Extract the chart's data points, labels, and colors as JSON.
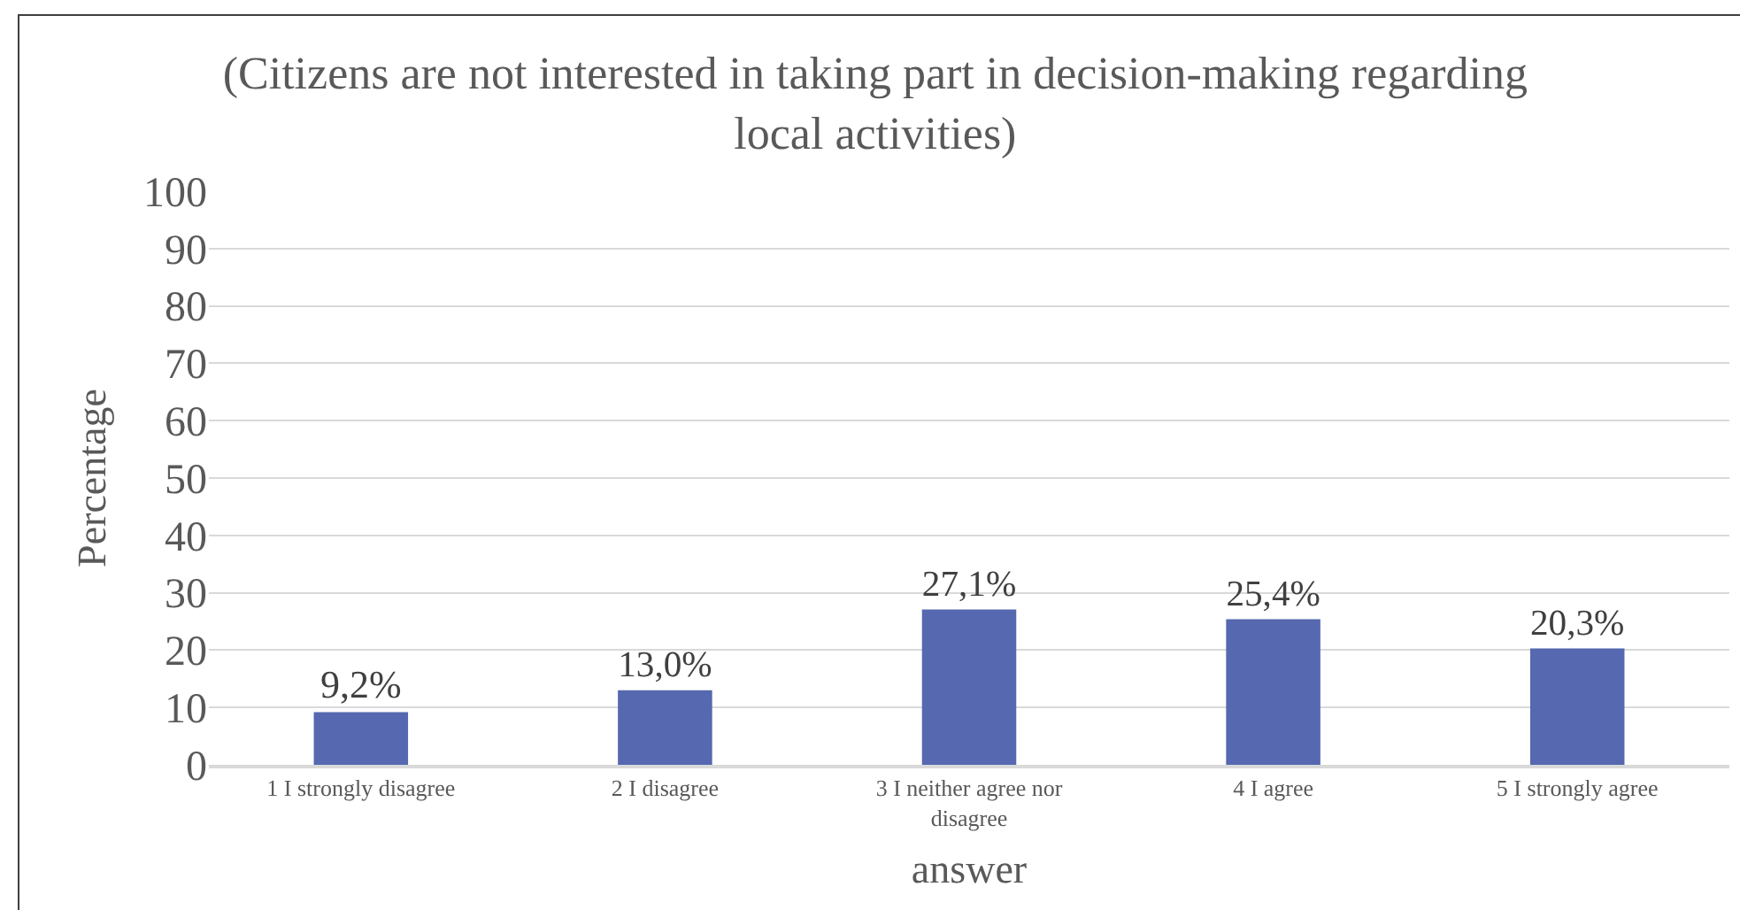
{
  "chart_data": {
    "type": "bar",
    "title": "(Citizens are not interested in taking part in decision-making regarding local activities)",
    "xlabel": "answer",
    "ylabel": "Percentage",
    "categories": [
      "1 I strongly disagree",
      "2 I disagree",
      "3 I neither agree nor disagree",
      "4 I agree",
      "5 I strongly agree"
    ],
    "values": [
      9.2,
      13.0,
      27.1,
      25.4,
      20.3
    ],
    "value_labels": [
      "9,2%",
      "13,0%",
      "27,1%",
      "25,4%",
      "20,3%"
    ],
    "color": "#5568b0",
    "ylim": [
      0,
      100
    ],
    "yticks": [
      0,
      10,
      20,
      30,
      40,
      50,
      60,
      70,
      80,
      90,
      100
    ],
    "grid": "y"
  }
}
